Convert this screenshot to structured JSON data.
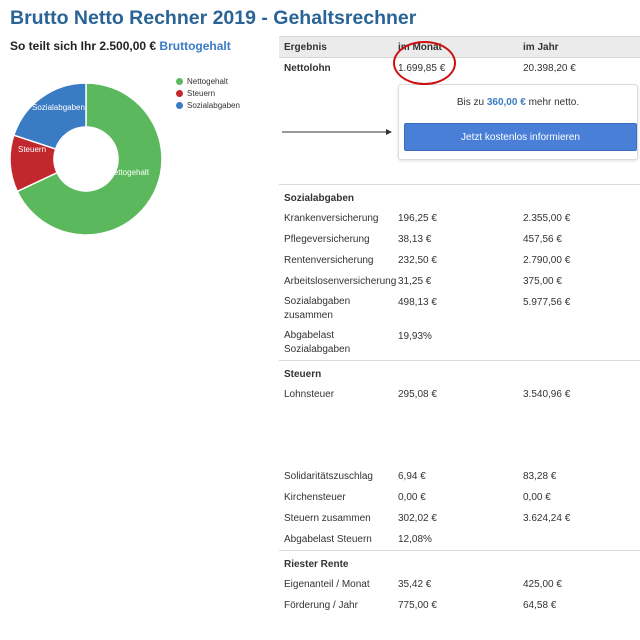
{
  "header": {
    "title": "Brutto Netto Rechner 2019 - Gehaltsrechner"
  },
  "distribution": {
    "subtitle_prefix": "So teilt sich Ihr 2.500,00 €",
    "subtitle_accent": "Bruttogehalt",
    "legend": [
      {
        "label": "Nettogehalt",
        "color": "#5cb85c"
      },
      {
        "label": "Steuern",
        "color": "#c1272d"
      },
      {
        "label": "Sozialabgaben",
        "color": "#3a7cc4"
      }
    ],
    "slice_labels": {
      "netto": "Nettogehalt",
      "steuern": "Steuern",
      "sozial": "Sozialabgaben"
    }
  },
  "chart_data": {
    "type": "pie",
    "title": "",
    "categories": [
      "Nettogehalt",
      "Steuern",
      "Sozialabgaben"
    ],
    "values": [
      1699.85,
      302.02,
      498.13
    ],
    "colors": [
      "#5cb85c",
      "#c1272d",
      "#3a7cc4"
    ],
    "legend_position": "top-right"
  },
  "results": {
    "col_result": "Ergebnis",
    "col_month": "im Monat",
    "col_year": "im Jahr",
    "netto": {
      "label": "Nettolohn",
      "month": "1.699,85 €",
      "year": "20.398,20 €"
    },
    "promo": {
      "text_prefix": "Bis zu",
      "amount": "360,00 €",
      "text_suffix": "mehr netto.",
      "button": "Jetzt kostenlos informieren"
    },
    "sozial": {
      "title": "Sozialabgaben",
      "rows": [
        {
          "label": "Krankenversicherung",
          "month": "196,25 €",
          "year": "2.355,00 €"
        },
        {
          "label": "Pflegeversicherung",
          "month": "38,13 €",
          "year": "457,56 €"
        },
        {
          "label": "Rentenversicherung",
          "month": "232,50 €",
          "year": "2.790,00 €"
        },
        {
          "label": "Arbeitslosenversicherung",
          "month": "31,25 €",
          "year": "375,00 €"
        },
        {
          "label": "Sozialabgaben zusammen",
          "month": "498,13 €",
          "year": "5.977,56 €"
        },
        {
          "label": "Abgabelast Sozialabgaben",
          "month": "19,93%",
          "year": ""
        }
      ]
    },
    "steuern": {
      "title": "Steuern",
      "lohnsteuer": {
        "label": "Lohnsteuer",
        "month": "295,08 €",
        "year": "3.540,96 €"
      },
      "rows": [
        {
          "label": "Solidaritätszuschlag",
          "month": "6,94 €",
          "year": "83,28 €"
        },
        {
          "label": "Kirchensteuer",
          "month": "0,00 €",
          "year": "0,00 €"
        },
        {
          "label": "Steuern zusammen",
          "month": "302,02 €",
          "year": "3.624,24 €"
        },
        {
          "label": "Abgabelast Steuern",
          "month": "12,08%",
          "year": ""
        }
      ]
    },
    "riester": {
      "title": "Riester Rente",
      "rows": [
        {
          "label": "Eigenanteil / Monat",
          "month": "35,42 €",
          "year": "425,00 €"
        },
        {
          "label": "Förderung / Jahr",
          "month": "775,00 €",
          "year": "64,58 €"
        }
      ]
    }
  }
}
